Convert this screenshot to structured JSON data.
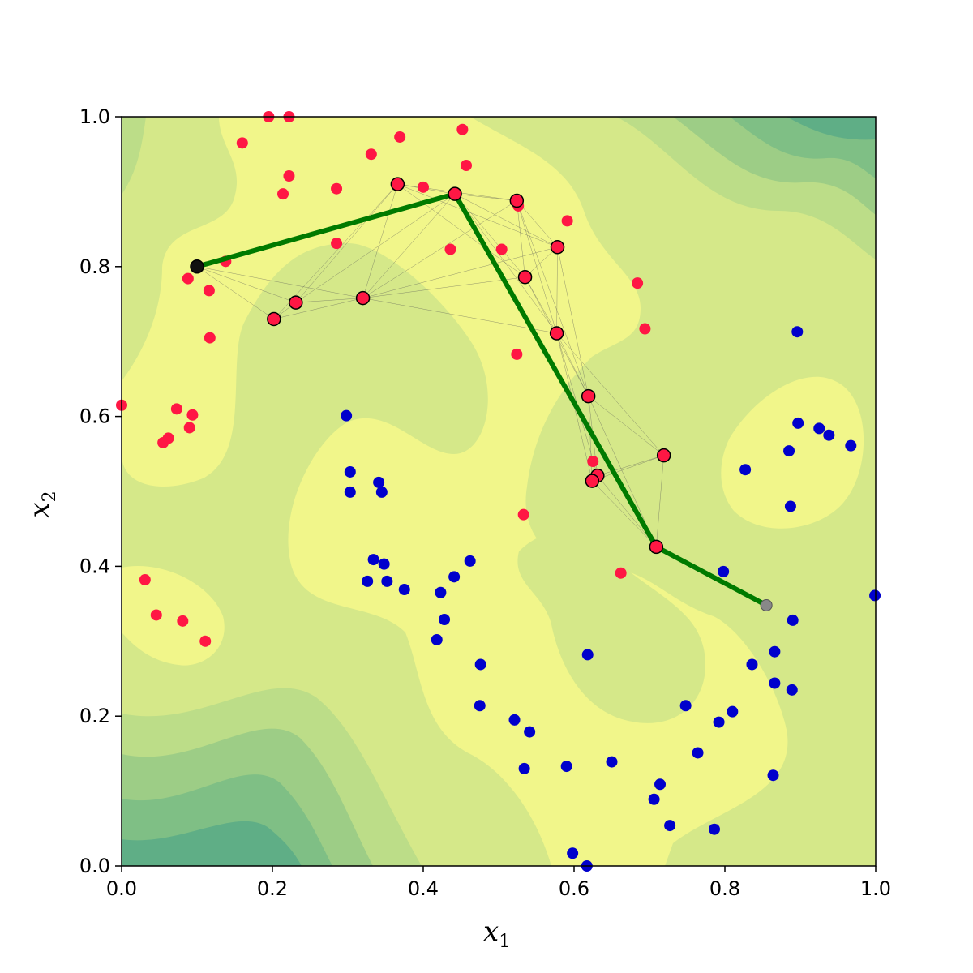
{
  "chart_data": {
    "type": "scatter",
    "xlabel": "x",
    "xlabel_sub": "1",
    "ylabel": "x",
    "ylabel_sub": "2",
    "xlim": [
      0.0,
      1.0
    ],
    "ylim": [
      0.0,
      1.0
    ],
    "xticks": [
      "0.0",
      "0.2",
      "0.4",
      "0.6",
      "0.8",
      "1.0"
    ],
    "yticks": [
      "0.0",
      "0.2",
      "0.4",
      "0.6",
      "0.8",
      "1.0"
    ],
    "grid": false,
    "legend": "none",
    "colors": {
      "red_points": "#ff1744",
      "blue_points": "#0000cc",
      "path": "#007a00",
      "contour_levels": [
        "#5fae86",
        "#7fbf85",
        "#9dcd86",
        "#bcdd88",
        "#d5e889",
        "#f1f68a"
      ]
    },
    "background_contour": "filled density contours, yellow-green (high density near red and blue clusters)",
    "red_points": [
      [
        0.195,
        1.0
      ],
      [
        0.222,
        1.0
      ],
      [
        0.16,
        0.965
      ],
      [
        0.331,
        0.95
      ],
      [
        0.369,
        0.973
      ],
      [
        0.452,
        0.983
      ],
      [
        0.457,
        0.935
      ],
      [
        0.222,
        0.921
      ],
      [
        0.214,
        0.897
      ],
      [
        0.285,
        0.904
      ],
      [
        0.4,
        0.906
      ],
      [
        0.526,
        0.881
      ],
      [
        0.591,
        0.861
      ],
      [
        0.285,
        0.831
      ],
      [
        0.436,
        0.823
      ],
      [
        0.504,
        0.823
      ],
      [
        0.138,
        0.807
      ],
      [
        0.088,
        0.784
      ],
      [
        0.116,
        0.768
      ],
      [
        0.684,
        0.778
      ],
      [
        0.694,
        0.717
      ],
      [
        0.117,
        0.705
      ],
      [
        0.524,
        0.683
      ],
      [
        0.0,
        0.615
      ],
      [
        0.073,
        0.61
      ],
      [
        0.094,
        0.602
      ],
      [
        0.09,
        0.585
      ],
      [
        0.062,
        0.571
      ],
      [
        0.055,
        0.565
      ],
      [
        0.625,
        0.54
      ],
      [
        0.533,
        0.469
      ],
      [
        0.662,
        0.391
      ],
      [
        0.031,
        0.382
      ],
      [
        0.046,
        0.335
      ],
      [
        0.081,
        0.327
      ],
      [
        0.111,
        0.3
      ]
    ],
    "path_nodes": [
      [
        0.1,
        0.8
      ],
      [
        0.202,
        0.73
      ],
      [
        0.231,
        0.752
      ],
      [
        0.32,
        0.758
      ],
      [
        0.366,
        0.91
      ],
      [
        0.442,
        0.897
      ],
      [
        0.524,
        0.888
      ],
      [
        0.578,
        0.826
      ],
      [
        0.535,
        0.786
      ],
      [
        0.577,
        0.711
      ],
      [
        0.619,
        0.627
      ],
      [
        0.719,
        0.548
      ],
      [
        0.631,
        0.521
      ],
      [
        0.624,
        0.514
      ],
      [
        0.709,
        0.426
      ]
    ],
    "end_point": [
      0.855,
      0.348
    ],
    "path": [
      [
        0.1,
        0.8
      ],
      [
        0.442,
        0.897
      ],
      [
        0.709,
        0.426
      ],
      [
        0.855,
        0.348
      ]
    ],
    "blue_points": [
      [
        0.896,
        0.713
      ],
      [
        0.298,
        0.601
      ],
      [
        0.897,
        0.591
      ],
      [
        0.925,
        0.584
      ],
      [
        0.938,
        0.575
      ],
      [
        0.967,
        0.561
      ],
      [
        0.885,
        0.554
      ],
      [
        0.827,
        0.529
      ],
      [
        0.303,
        0.526
      ],
      [
        0.341,
        0.512
      ],
      [
        0.303,
        0.499
      ],
      [
        0.345,
        0.499
      ],
      [
        0.887,
        0.48
      ],
      [
        0.462,
        0.407
      ],
      [
        0.334,
        0.409
      ],
      [
        0.348,
        0.403
      ],
      [
        0.798,
        0.393
      ],
      [
        0.441,
        0.386
      ],
      [
        0.326,
        0.38
      ],
      [
        0.352,
        0.38
      ],
      [
        0.375,
        0.369
      ],
      [
        0.423,
        0.365
      ],
      [
        0.999,
        0.361
      ],
      [
        0.428,
        0.329
      ],
      [
        0.89,
        0.328
      ],
      [
        0.418,
        0.302
      ],
      [
        0.618,
        0.282
      ],
      [
        0.866,
        0.286
      ],
      [
        0.476,
        0.269
      ],
      [
        0.836,
        0.269
      ],
      [
        0.866,
        0.244
      ],
      [
        0.889,
        0.235
      ],
      [
        0.475,
        0.214
      ],
      [
        0.748,
        0.214
      ],
      [
        0.81,
        0.206
      ],
      [
        0.521,
        0.195
      ],
      [
        0.792,
        0.192
      ],
      [
        0.541,
        0.179
      ],
      [
        0.764,
        0.151
      ],
      [
        0.65,
        0.139
      ],
      [
        0.59,
        0.133
      ],
      [
        0.534,
        0.13
      ],
      [
        0.864,
        0.121
      ],
      [
        0.714,
        0.109
      ],
      [
        0.706,
        0.089
      ],
      [
        0.727,
        0.054
      ],
      [
        0.786,
        0.049
      ],
      [
        0.598,
        0.017
      ],
      [
        0.617,
        0.0
      ]
    ]
  }
}
